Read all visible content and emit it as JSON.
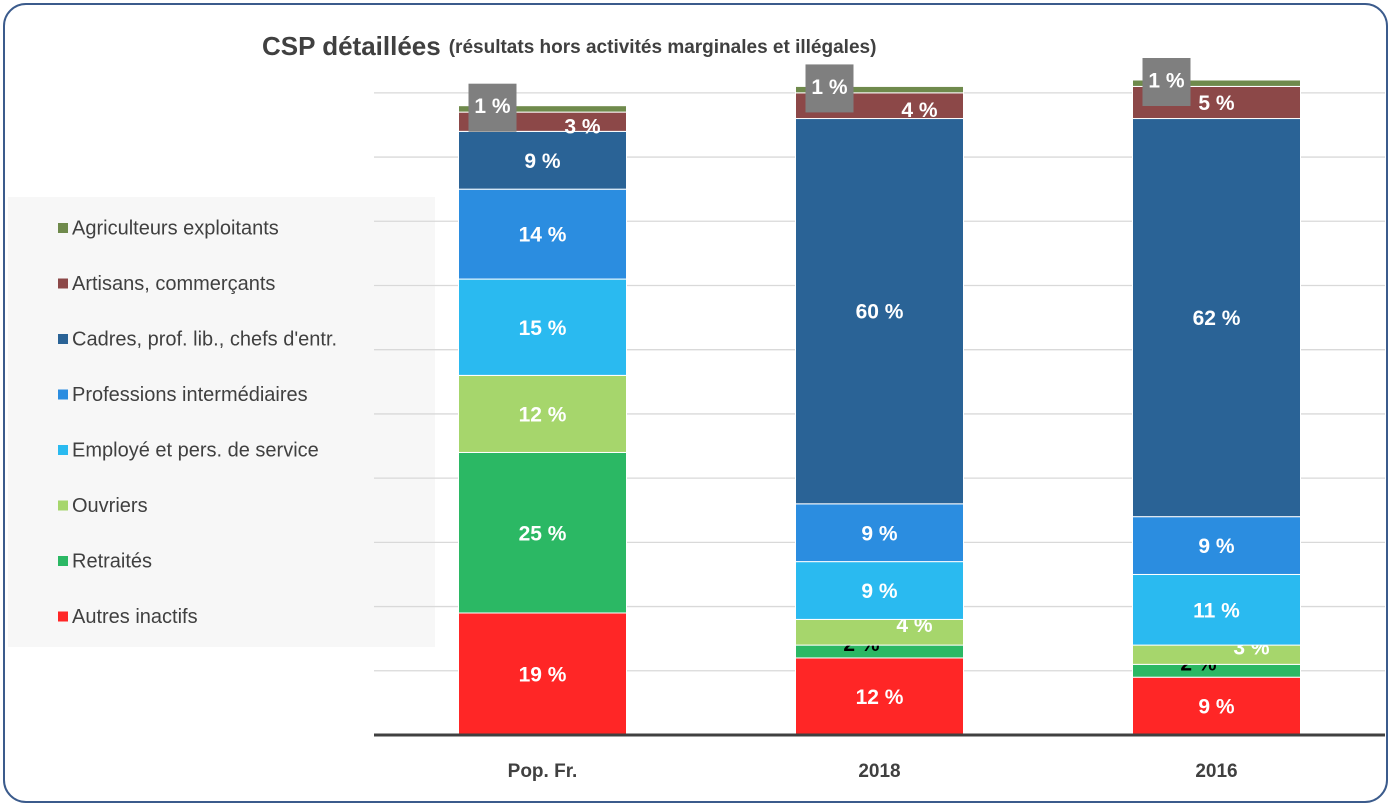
{
  "chart_data": {
    "type": "stacked_bar",
    "title": "CSP détaillées",
    "subtitle": "(résultats hors activités marginales et illégales)",
    "categories": [
      "Pop. Fr.",
      "2018",
      "2016"
    ],
    "series": [
      {
        "name": "Autres inactifs",
        "color": "#ff2626",
        "values": [
          19,
          12,
          9
        ],
        "value_labels": [
          "19 %",
          "12 %",
          "9 %"
        ]
      },
      {
        "name": "Retraités",
        "color": "#2bb864",
        "values": [
          25,
          2,
          2
        ],
        "value_labels": [
          "25 %",
          "2 %",
          "2 %"
        ]
      },
      {
        "name": "Ouvriers",
        "color": "#a6d66c",
        "values": [
          12,
          4,
          3
        ],
        "value_labels": [
          "12 %",
          "4 %",
          "3 %"
        ]
      },
      {
        "name": "Employé et pers. de service",
        "color": "#2abaf0",
        "values": [
          15,
          9,
          11
        ],
        "value_labels": [
          "15 %",
          "9 %",
          "11 %"
        ]
      },
      {
        "name": "Professions intermédiaires",
        "color": "#2b8de0",
        "values": [
          14,
          9,
          9
        ],
        "value_labels": [
          "14 %",
          "9 %",
          "9 %"
        ]
      },
      {
        "name": "Cadres, prof. lib., chefs d'entr.",
        "color": "#2a6396",
        "values": [
          9,
          60,
          62
        ],
        "value_labels": [
          "9 %",
          "60 %",
          "62 %"
        ]
      },
      {
        "name": "Artisans, commerçants",
        "color": "#8c4848",
        "values": [
          3,
          4,
          5
        ],
        "value_labels": [
          "3 %",
          "4 %",
          "5 %"
        ]
      },
      {
        "name": "Agriculteurs exploitants",
        "color": "#6f8a4c",
        "values": [
          1,
          1,
          1
        ],
        "value_labels": [
          "1 %",
          "1 %",
          "1 %"
        ]
      }
    ],
    "ylim": [
      0,
      102
    ],
    "yticks": [
      0,
      10,
      20,
      30,
      40,
      50,
      60,
      70,
      80,
      90,
      100
    ],
    "grid": true,
    "legend": "left"
  }
}
